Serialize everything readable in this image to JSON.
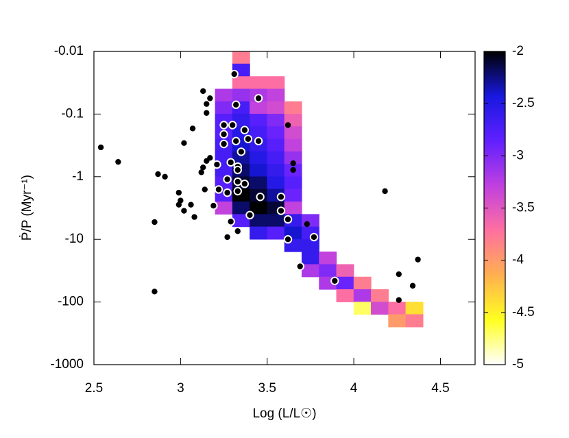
{
  "chart_data": {
    "type": "heatmap",
    "xlabel": "Log (L/L☉)",
    "ylabel": "Ṗ/P (Myr⁻¹)",
    "xlim": [
      2.5,
      4.7
    ],
    "xticks": [
      2.5,
      3,
      3.5,
      4,
      4.5
    ],
    "ylim": [
      -0.01,
      -1000
    ],
    "yticks": [
      -0.01,
      -0.1,
      -1,
      -10,
      -100,
      -1000
    ],
    "ylog": true,
    "heatmap": {
      "xbins": [
        3.2,
        3.3,
        3.4,
        3.5,
        3.6,
        3.7,
        3.8,
        3.9,
        4.0,
        4.1,
        4.2,
        4.3,
        4.4
      ],
      "ybins": [
        -0.01,
        -0.0158,
        -0.0251,
        -0.0398,
        -0.0631,
        -0.1,
        -0.158,
        -0.251,
        -0.398,
        -0.631,
        -1,
        -1.58,
        -2.51,
        -3.98,
        -6.31,
        -10,
        -15.8,
        -25.1,
        -39.8,
        -63.1,
        -100,
        -158,
        -251
      ],
      "z": [
        [
          null,
          -3.8,
          null,
          null,
          null,
          null,
          null,
          null,
          null,
          null,
          null,
          null
        ],
        [
          null,
          -2.7,
          null,
          null,
          null,
          null,
          null,
          null,
          null,
          null,
          null,
          null
        ],
        [
          null,
          -3.7,
          -3.7,
          -3.7,
          null,
          null,
          null,
          null,
          null,
          null,
          null,
          null
        ],
        [
          -3.2,
          -3.1,
          -3.2,
          -3.3,
          null,
          null,
          null,
          null,
          null,
          null,
          null,
          null
        ],
        [
          -3.0,
          -2.7,
          -3.3,
          -3.4,
          -3.8,
          null,
          null,
          null,
          null,
          null,
          null,
          null
        ],
        [
          -2.8,
          -2.6,
          -2.8,
          -3.0,
          -3.6,
          null,
          null,
          null,
          null,
          null,
          null,
          null
        ],
        [
          -2.8,
          -2.5,
          -2.7,
          -2.9,
          -3.4,
          null,
          null,
          null,
          null,
          null,
          null,
          null
        ],
        [
          -2.7,
          -2.4,
          -2.6,
          -2.8,
          -3.3,
          null,
          null,
          null,
          null,
          null,
          null,
          null
        ],
        [
          -2.7,
          -2.3,
          -2.5,
          -2.7,
          -3.1,
          null,
          null,
          null,
          null,
          null,
          null,
          null
        ],
        [
          -2.7,
          -2.2,
          -2.4,
          -2.6,
          -2.9,
          null,
          null,
          null,
          null,
          null,
          null,
          null
        ],
        [
          -2.8,
          -2.1,
          -2.2,
          -2.5,
          -2.8,
          null,
          null,
          null,
          null,
          null,
          null,
          null
        ],
        [
          -2.8,
          -2.0,
          -2.1,
          -2.3,
          -2.9,
          null,
          null,
          null,
          null,
          null,
          null,
          null
        ],
        [
          -3.3,
          -2.2,
          -2.0,
          -2.1,
          -3.3,
          null,
          null,
          null,
          null,
          null,
          null,
          null
        ],
        [
          null,
          -2.8,
          -2.2,
          -2.2,
          -2.6,
          -3.0,
          null,
          null,
          null,
          null,
          null,
          null
        ],
        [
          null,
          null,
          -2.6,
          -2.8,
          -2.4,
          -2.7,
          null,
          null,
          null,
          null,
          null,
          null
        ],
        [
          null,
          null,
          null,
          null,
          -2.6,
          -2.6,
          null,
          null,
          null,
          null,
          null,
          null
        ],
        [
          null,
          null,
          null,
          null,
          null,
          -2.6,
          -3.3,
          null,
          null,
          null,
          null,
          null
        ],
        [
          null,
          null,
          null,
          null,
          null,
          -3.2,
          -3.0,
          -3.6,
          null,
          null,
          null,
          null
        ],
        [
          null,
          null,
          null,
          null,
          null,
          null,
          -3.2,
          -2.9,
          -3.8,
          null,
          null,
          null
        ],
        [
          null,
          null,
          null,
          null,
          null,
          null,
          null,
          -3.7,
          -3.2,
          -3.8,
          null,
          null
        ],
        [
          null,
          null,
          null,
          null,
          null,
          null,
          null,
          null,
          -4.7,
          -3.4,
          -3.7,
          -4.4
        ],
        [
          null,
          null,
          null,
          null,
          null,
          null,
          null,
          null,
          null,
          null,
          -4.0,
          -3.8
        ]
      ]
    },
    "colormap": [
      "#ffffff",
      "#ffff20",
      "#ffb050",
      "#ff70a0",
      "#c040e0",
      "#6020ff",
      "#1818e0",
      "#000000"
    ],
    "zlim": [
      -5,
      -2
    ],
    "zticks": [
      -2,
      -2.5,
      -3,
      -3.5,
      -4,
      -4.5,
      -5
    ],
    "series": [
      {
        "color": "#000000",
        "x": [
          2.54,
          2.64,
          2.87,
          2.91,
          2.99,
          3.0,
          2.99,
          3.02,
          3.06,
          3.08,
          2.85,
          2.85,
          3.07,
          3.02,
          3.13,
          3.15,
          3.15,
          3.17,
          3.12,
          3.13,
          3.15,
          3.17,
          3.14,
          3.27,
          3.33,
          3.62,
          3.65,
          3.65,
          3.73,
          4.18,
          4.37,
          4.26,
          4.34,
          4.26
        ],
        "y": [
          -0.34,
          -0.58,
          -0.91,
          -1.0,
          -1.8,
          -2.4,
          -2.8,
          -3.5,
          -2.8,
          -4.4,
          -5.3,
          -68,
          -0.17,
          -0.29,
          -0.043,
          -0.069,
          -0.096,
          -0.056,
          -0.85,
          -0.71,
          -0.56,
          -0.5,
          -1.6,
          -9.2,
          -7.4,
          -0.15,
          -0.61,
          -0.78,
          -5.7,
          -1.7,
          -21,
          -36,
          -55,
          -93
        ]
      },
      {
        "color": "#000000",
        "edgecolor": "#ffffff",
        "x": [
          3.31,
          3.45,
          3.32,
          3.25,
          3.3,
          3.37,
          3.25,
          3.32,
          3.25,
          3.39,
          3.45,
          3.35,
          3.21,
          3.29,
          3.33,
          3.33,
          3.27,
          3.33,
          3.37,
          3.22,
          3.27,
          3.33,
          3.46,
          3.58,
          3.19,
          3.4,
          3.58,
          3.62,
          3.29,
          3.62,
          3.77,
          3.69,
          3.89
        ],
        "y": [
          -0.023,
          -0.056,
          -0.071,
          -0.15,
          -0.15,
          -0.18,
          -0.21,
          -0.27,
          -0.3,
          -0.25,
          -0.27,
          -0.4,
          -0.64,
          -0.59,
          -0.69,
          -0.78,
          -1.1,
          -1.2,
          -1.3,
          -1.6,
          -1.8,
          -1.7,
          -2.1,
          -2.1,
          -2.9,
          -4.1,
          -3.5,
          -4.8,
          -5.2,
          -10,
          -9.2,
          -27,
          -46
        ]
      }
    ]
  }
}
